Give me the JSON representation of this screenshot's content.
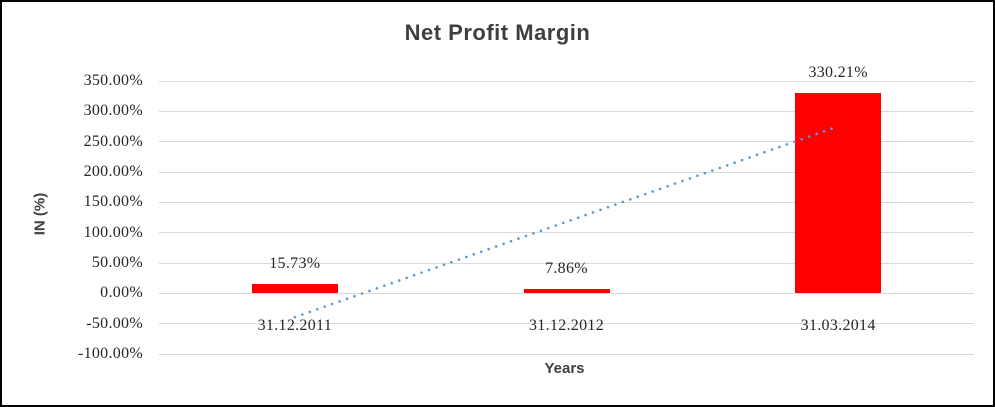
{
  "chart_data": {
    "type": "bar",
    "title": "Net Profit Margin",
    "xlabel": "Years",
    "ylabel": "IN (%)",
    "categories": [
      "31.12.2011",
      "31.12.2012",
      "31.03.2014"
    ],
    "values": [
      15.73,
      7.86,
      330.21
    ],
    "data_labels": [
      "15.73%",
      "7.86%",
      "330.21%"
    ],
    "ylim": [
      -100,
      350
    ],
    "ytick_step": 50,
    "ytick_labels": [
      "350.00%",
      "300.00%",
      "250.00%",
      "200.00%",
      "150.00%",
      "100.00%",
      "50.00%",
      "0.00%",
      "-50.00%",
      "-100.00%"
    ],
    "grid": true,
    "legend": false,
    "trendline": {
      "type": "linear",
      "style": "dotted",
      "color": "#5b9bd5"
    },
    "colors": {
      "bar": "#ff0000",
      "gridline": "#d9d9d9",
      "title_text": "#3f3f3f",
      "axis_text": "#262626",
      "frame_border": "#000000"
    }
  }
}
